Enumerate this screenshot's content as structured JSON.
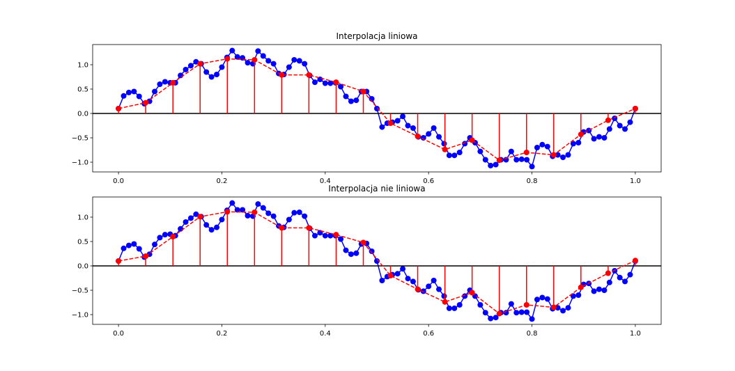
{
  "chart_data": [
    {
      "type": "stem_line",
      "title": "Interpolacja liniowa",
      "xlim": [
        -0.05,
        1.05
      ],
      "ylim": [
        -1.2,
        1.414
      ],
      "xticks": [
        {
          "value": 0,
          "label": "0.0"
        },
        {
          "value": 0.2,
          "label": "0.2"
        },
        {
          "value": 0.4,
          "label": "0.4"
        },
        {
          "value": 0.6,
          "label": "0.6"
        },
        {
          "value": 0.8,
          "label": "0.8"
        },
        {
          "value": 1,
          "label": "1.0"
        }
      ],
      "yticks": [
        {
          "value": -1,
          "label": "−1.0"
        },
        {
          "value": -0.5,
          "label": "−0.5"
        },
        {
          "value": 0,
          "label": "0.0"
        },
        {
          "value": 0.5,
          "label": "0.5"
        },
        {
          "value": 1,
          "label": "1.0"
        }
      ],
      "hline": 0,
      "hline_color": "#000000",
      "series": [
        {
          "color": "#0000ff",
          "line_style": "solid",
          "stems": false,
          "x": [
            0,
            0.01,
            0.02,
            0.03,
            0.04,
            0.05,
            0.06,
            0.07,
            0.08,
            0.09,
            0.1,
            0.11,
            0.12,
            0.13,
            0.14,
            0.15,
            0.16,
            0.17,
            0.18,
            0.19,
            0.2,
            0.21,
            0.22,
            0.23,
            0.24,
            0.25,
            0.26,
            0.27,
            0.28,
            0.29,
            0.3,
            0.31,
            0.32,
            0.33,
            0.34,
            0.35,
            0.36,
            0.37,
            0.38,
            0.39,
            0.4,
            0.41,
            0.42,
            0.43,
            0.44,
            0.45,
            0.46,
            0.47,
            0.48,
            0.49,
            0.5,
            0.51,
            0.52,
            0.53,
            0.54,
            0.55,
            0.56,
            0.57,
            0.58,
            0.59,
            0.6,
            0.61,
            0.62,
            0.63,
            0.64,
            0.65,
            0.66,
            0.67,
            0.68,
            0.69,
            0.7,
            0.71,
            0.72,
            0.73,
            0.74,
            0.75,
            0.76,
            0.77,
            0.78,
            0.79,
            0.8,
            0.81,
            0.82,
            0.83,
            0.84,
            0.85,
            0.86,
            0.87,
            0.88,
            0.89,
            0.9,
            0.91,
            0.92,
            0.93,
            0.94,
            0.95,
            0.96,
            0.97,
            0.98,
            0.99,
            1
          ],
          "values": [
            0.1,
            0.36,
            0.43,
            0.45,
            0.35,
            0.2,
            0.25,
            0.45,
            0.6,
            0.65,
            0.63,
            0.63,
            0.78,
            0.9,
            0.98,
            1.06,
            1.02,
            0.85,
            0.75,
            0.8,
            0.95,
            1.15,
            1.29,
            1.16,
            1.14,
            1.04,
            1.02,
            1.28,
            1.18,
            1.08,
            1.02,
            0.82,
            0.8,
            0.95,
            1.1,
            1.08,
            1.02,
            0.78,
            0.64,
            0.7,
            0.62,
            0.62,
            0.63,
            0.55,
            0.35,
            0.25,
            0.27,
            0.45,
            0.45,
            0.3,
            0.1,
            -0.28,
            -0.2,
            -0.18,
            -0.15,
            -0.06,
            -0.25,
            -0.3,
            -0.48,
            -0.5,
            -0.42,
            -0.3,
            -0.48,
            -0.62,
            -0.86,
            -0.86,
            -0.8,
            -0.62,
            -0.5,
            -0.6,
            -0.78,
            -0.95,
            -1.07,
            -1.05,
            -0.95,
            -0.95,
            -0.78,
            -0.95,
            -0.94,
            -0.95,
            -1.09,
            -0.7,
            -0.64,
            -0.68,
            -0.88,
            -0.85,
            -0.9,
            -0.85,
            -0.62,
            -0.6,
            -0.38,
            -0.35,
            -0.52,
            -0.48,
            -0.5,
            -0.32,
            -0.1,
            -0.25,
            -0.32,
            -0.18,
            0.1
          ]
        },
        {
          "color": "#ff0000",
          "line_style": "dashed",
          "stems": true,
          "x": [
            0,
            0.0526,
            0.1053,
            0.1579,
            0.2105,
            0.2632,
            0.3158,
            0.3684,
            0.4211,
            0.4737,
            0.5263,
            0.5789,
            0.6316,
            0.6842,
            0.7368,
            0.7895,
            0.8421,
            0.8947,
            0.9474,
            1
          ],
          "values": [
            0.1,
            0.22,
            0.63,
            1.02,
            1.12,
            1.1,
            0.79,
            0.79,
            0.64,
            0.45,
            -0.2,
            -0.47,
            -0.74,
            -0.55,
            -0.96,
            -0.8,
            -0.85,
            -0.43,
            -0.14,
            0.1
          ]
        }
      ]
    },
    {
      "type": "stem_line",
      "title": "Interpolacja nie liniowa",
      "xlim": [
        -0.05,
        1.05
      ],
      "ylim": [
        -1.2,
        1.414
      ],
      "xticks": [
        {
          "value": 0,
          "label": "0.0"
        },
        {
          "value": 0.2,
          "label": "0.2"
        },
        {
          "value": 0.4,
          "label": "0.4"
        },
        {
          "value": 0.6,
          "label": "0.6"
        },
        {
          "value": 0.8,
          "label": "0.8"
        },
        {
          "value": 1,
          "label": "1.0"
        }
      ],
      "yticks": [
        {
          "value": -1,
          "label": "−1.0"
        },
        {
          "value": -0.5,
          "label": "−0.5"
        },
        {
          "value": 0,
          "label": "0.0"
        },
        {
          "value": 0.5,
          "label": "0.5"
        },
        {
          "value": 1,
          "label": "1.0"
        }
      ],
      "hline": 0,
      "hline_color": "#000000",
      "series": [
        {
          "color": "#0000ff",
          "line_style": "solid",
          "stems": false,
          "x": [
            0,
            0.01,
            0.02,
            0.03,
            0.04,
            0.05,
            0.06,
            0.07,
            0.08,
            0.09,
            0.1,
            0.11,
            0.12,
            0.13,
            0.14,
            0.15,
            0.16,
            0.17,
            0.18,
            0.19,
            0.2,
            0.21,
            0.22,
            0.23,
            0.24,
            0.25,
            0.26,
            0.27,
            0.28,
            0.29,
            0.3,
            0.31,
            0.32,
            0.33,
            0.34,
            0.35,
            0.36,
            0.37,
            0.38,
            0.39,
            0.4,
            0.41,
            0.42,
            0.43,
            0.44,
            0.45,
            0.46,
            0.47,
            0.48,
            0.49,
            0.5,
            0.51,
            0.52,
            0.53,
            0.54,
            0.55,
            0.56,
            0.57,
            0.58,
            0.59,
            0.6,
            0.61,
            0.62,
            0.63,
            0.64,
            0.65,
            0.66,
            0.67,
            0.68,
            0.69,
            0.7,
            0.71,
            0.72,
            0.73,
            0.74,
            0.75,
            0.76,
            0.77,
            0.78,
            0.79,
            0.8,
            0.81,
            0.82,
            0.83,
            0.84,
            0.85,
            0.86,
            0.87,
            0.88,
            0.89,
            0.9,
            0.91,
            0.92,
            0.93,
            0.94,
            0.95,
            0.96,
            0.97,
            0.98,
            0.99,
            1
          ],
          "values": [
            0.1,
            0.36,
            0.42,
            0.45,
            0.35,
            0.18,
            0.24,
            0.44,
            0.58,
            0.64,
            0.65,
            0.62,
            0.76,
            0.9,
            0.98,
            1.06,
            1.01,
            0.84,
            0.74,
            0.79,
            0.95,
            1.14,
            1.29,
            1.15,
            1.15,
            1.03,
            1.02,
            1.27,
            1.19,
            1.08,
            1.02,
            0.82,
            0.79,
            0.95,
            1.09,
            1.1,
            1.02,
            0.77,
            0.62,
            0.68,
            0.62,
            0.62,
            0.62,
            0.55,
            0.32,
            0.24,
            0.26,
            0.45,
            0.46,
            0.3,
            0.1,
            -0.3,
            -0.22,
            -0.18,
            -0.16,
            -0.06,
            -0.26,
            -0.32,
            -0.49,
            -0.52,
            -0.42,
            -0.3,
            -0.48,
            -0.62,
            -0.87,
            -0.87,
            -0.8,
            -0.62,
            -0.5,
            -0.62,
            -0.8,
            -0.96,
            -1.08,
            -1.06,
            -0.96,
            -0.96,
            -0.78,
            -0.96,
            -0.95,
            -0.95,
            -1.09,
            -0.69,
            -0.65,
            -0.68,
            -0.88,
            -0.86,
            -0.92,
            -0.86,
            -0.62,
            -0.6,
            -0.38,
            -0.36,
            -0.52,
            -0.48,
            -0.5,
            -0.34,
            -0.1,
            -0.24,
            -0.32,
            -0.18,
            0.1
          ]
        },
        {
          "color": "#ff0000",
          "line_style": "dashed",
          "stems": true,
          "x": [
            0,
            0.0526,
            0.1053,
            0.1579,
            0.2105,
            0.2632,
            0.3158,
            0.3684,
            0.4211,
            0.4737,
            0.5263,
            0.5789,
            0.6316,
            0.6842,
            0.7368,
            0.7895,
            0.8421,
            0.8947,
            0.9474,
            1
          ],
          "values": [
            0.1,
            0.2,
            0.6,
            1.01,
            1.11,
            1.1,
            0.78,
            0.78,
            0.64,
            0.48,
            -0.2,
            -0.48,
            -0.74,
            -0.55,
            -0.98,
            -0.8,
            -0.85,
            -0.44,
            -0.15,
            0.11
          ]
        }
      ]
    }
  ]
}
